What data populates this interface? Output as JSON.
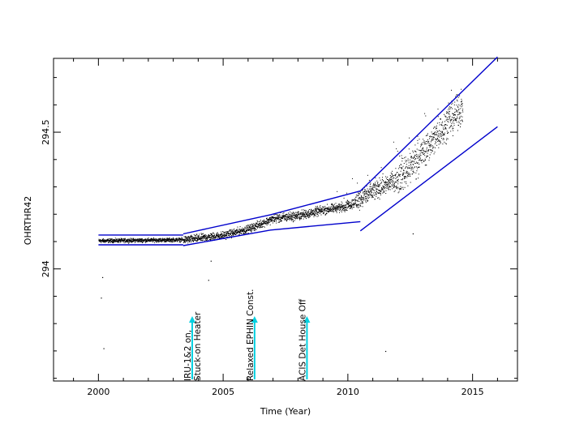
{
  "chart_data": {
    "type": "scatter",
    "title": "",
    "xlabel": "Time (Year)",
    "ylabel": "OHRTHR42",
    "xlim": [
      1998.2,
      2016.8
    ],
    "ylim": [
      293.59,
      294.77
    ],
    "grid": false,
    "x_ticks": [
      {
        "value": 2000,
        "label": "2000"
      },
      {
        "value": 2005,
        "label": "2005"
      },
      {
        "value": 2010,
        "label": "2010"
      },
      {
        "value": 2015,
        "label": "2015"
      }
    ],
    "y_ticks": [
      {
        "value": 294.0,
        "label": "294"
      },
      {
        "value": 294.5,
        "label": "294.5"
      }
    ],
    "colors": {
      "points": "#000000",
      "envelope": "#0000cc",
      "event_marker": "#00d0e0"
    },
    "data_trend": [
      {
        "x": 2000.0,
        "y": 294.104
      },
      {
        "x": 2003.5,
        "y": 294.108
      },
      {
        "x": 2005.0,
        "y": 294.124
      },
      {
        "x": 2006.0,
        "y": 294.147
      },
      {
        "x": 2007.0,
        "y": 294.185
      },
      {
        "x": 2008.0,
        "y": 294.196
      },
      {
        "x": 2009.0,
        "y": 294.216
      },
      {
        "x": 2010.0,
        "y": 294.232
      },
      {
        "x": 2010.5,
        "y": 294.258
      },
      {
        "x": 2011.0,
        "y": 294.285
      },
      {
        "x": 2012.0,
        "y": 294.331
      },
      {
        "x": 2013.0,
        "y": 294.427
      },
      {
        "x": 2014.0,
        "y": 294.537
      },
      {
        "x": 2014.6,
        "y": 294.593
      }
    ],
    "outliers": [
      {
        "x": 2000.1,
        "y": 293.895
      },
      {
        "x": 2000.2,
        "y": 293.71
      },
      {
        "x": 2000.15,
        "y": 293.97
      },
      {
        "x": 2004.5,
        "y": 294.03
      },
      {
        "x": 2004.4,
        "y": 293.96
      },
      {
        "x": 2011.5,
        "y": 293.7
      },
      {
        "x": 2012.6,
        "y": 294.13
      }
    ],
    "envelope_lines": [
      {
        "name": "",
        "points": [
          [
            2000.0,
            294.124
          ],
          [
            2003.4,
            294.124
          ]
        ]
      },
      {
        "name": "",
        "points": [
          [
            2000.0,
            294.088
          ],
          [
            2003.4,
            294.088
          ]
        ]
      },
      {
        "name": "",
        "points": [
          [
            2003.4,
            294.128
          ],
          [
            2006.9,
            294.198
          ],
          [
            2010.5,
            294.285
          ]
        ]
      },
      {
        "name": "",
        "points": [
          [
            2003.4,
            294.085
          ],
          [
            2006.9,
            294.142
          ],
          [
            2010.5,
            294.173
          ]
        ]
      },
      {
        "name": "",
        "points": [
          [
            2010.5,
            294.285
          ],
          [
            2016.0,
            294.775
          ]
        ]
      },
      {
        "name": "",
        "points": [
          [
            2010.5,
            294.139
          ],
          [
            2016.0,
            294.52
          ]
        ]
      }
    ],
    "events": [
      {
        "x": 2003.5,
        "label_lines": [
          "IRU-1&2 on,",
          "Stuck-on Heater"
        ]
      },
      {
        "x": 2006.0,
        "label_lines": [
          "Relaxed EPHIN Const."
        ]
      },
      {
        "x": 2008.1,
        "label_lines": [
          "ACIS Det House Off"
        ]
      }
    ]
  }
}
